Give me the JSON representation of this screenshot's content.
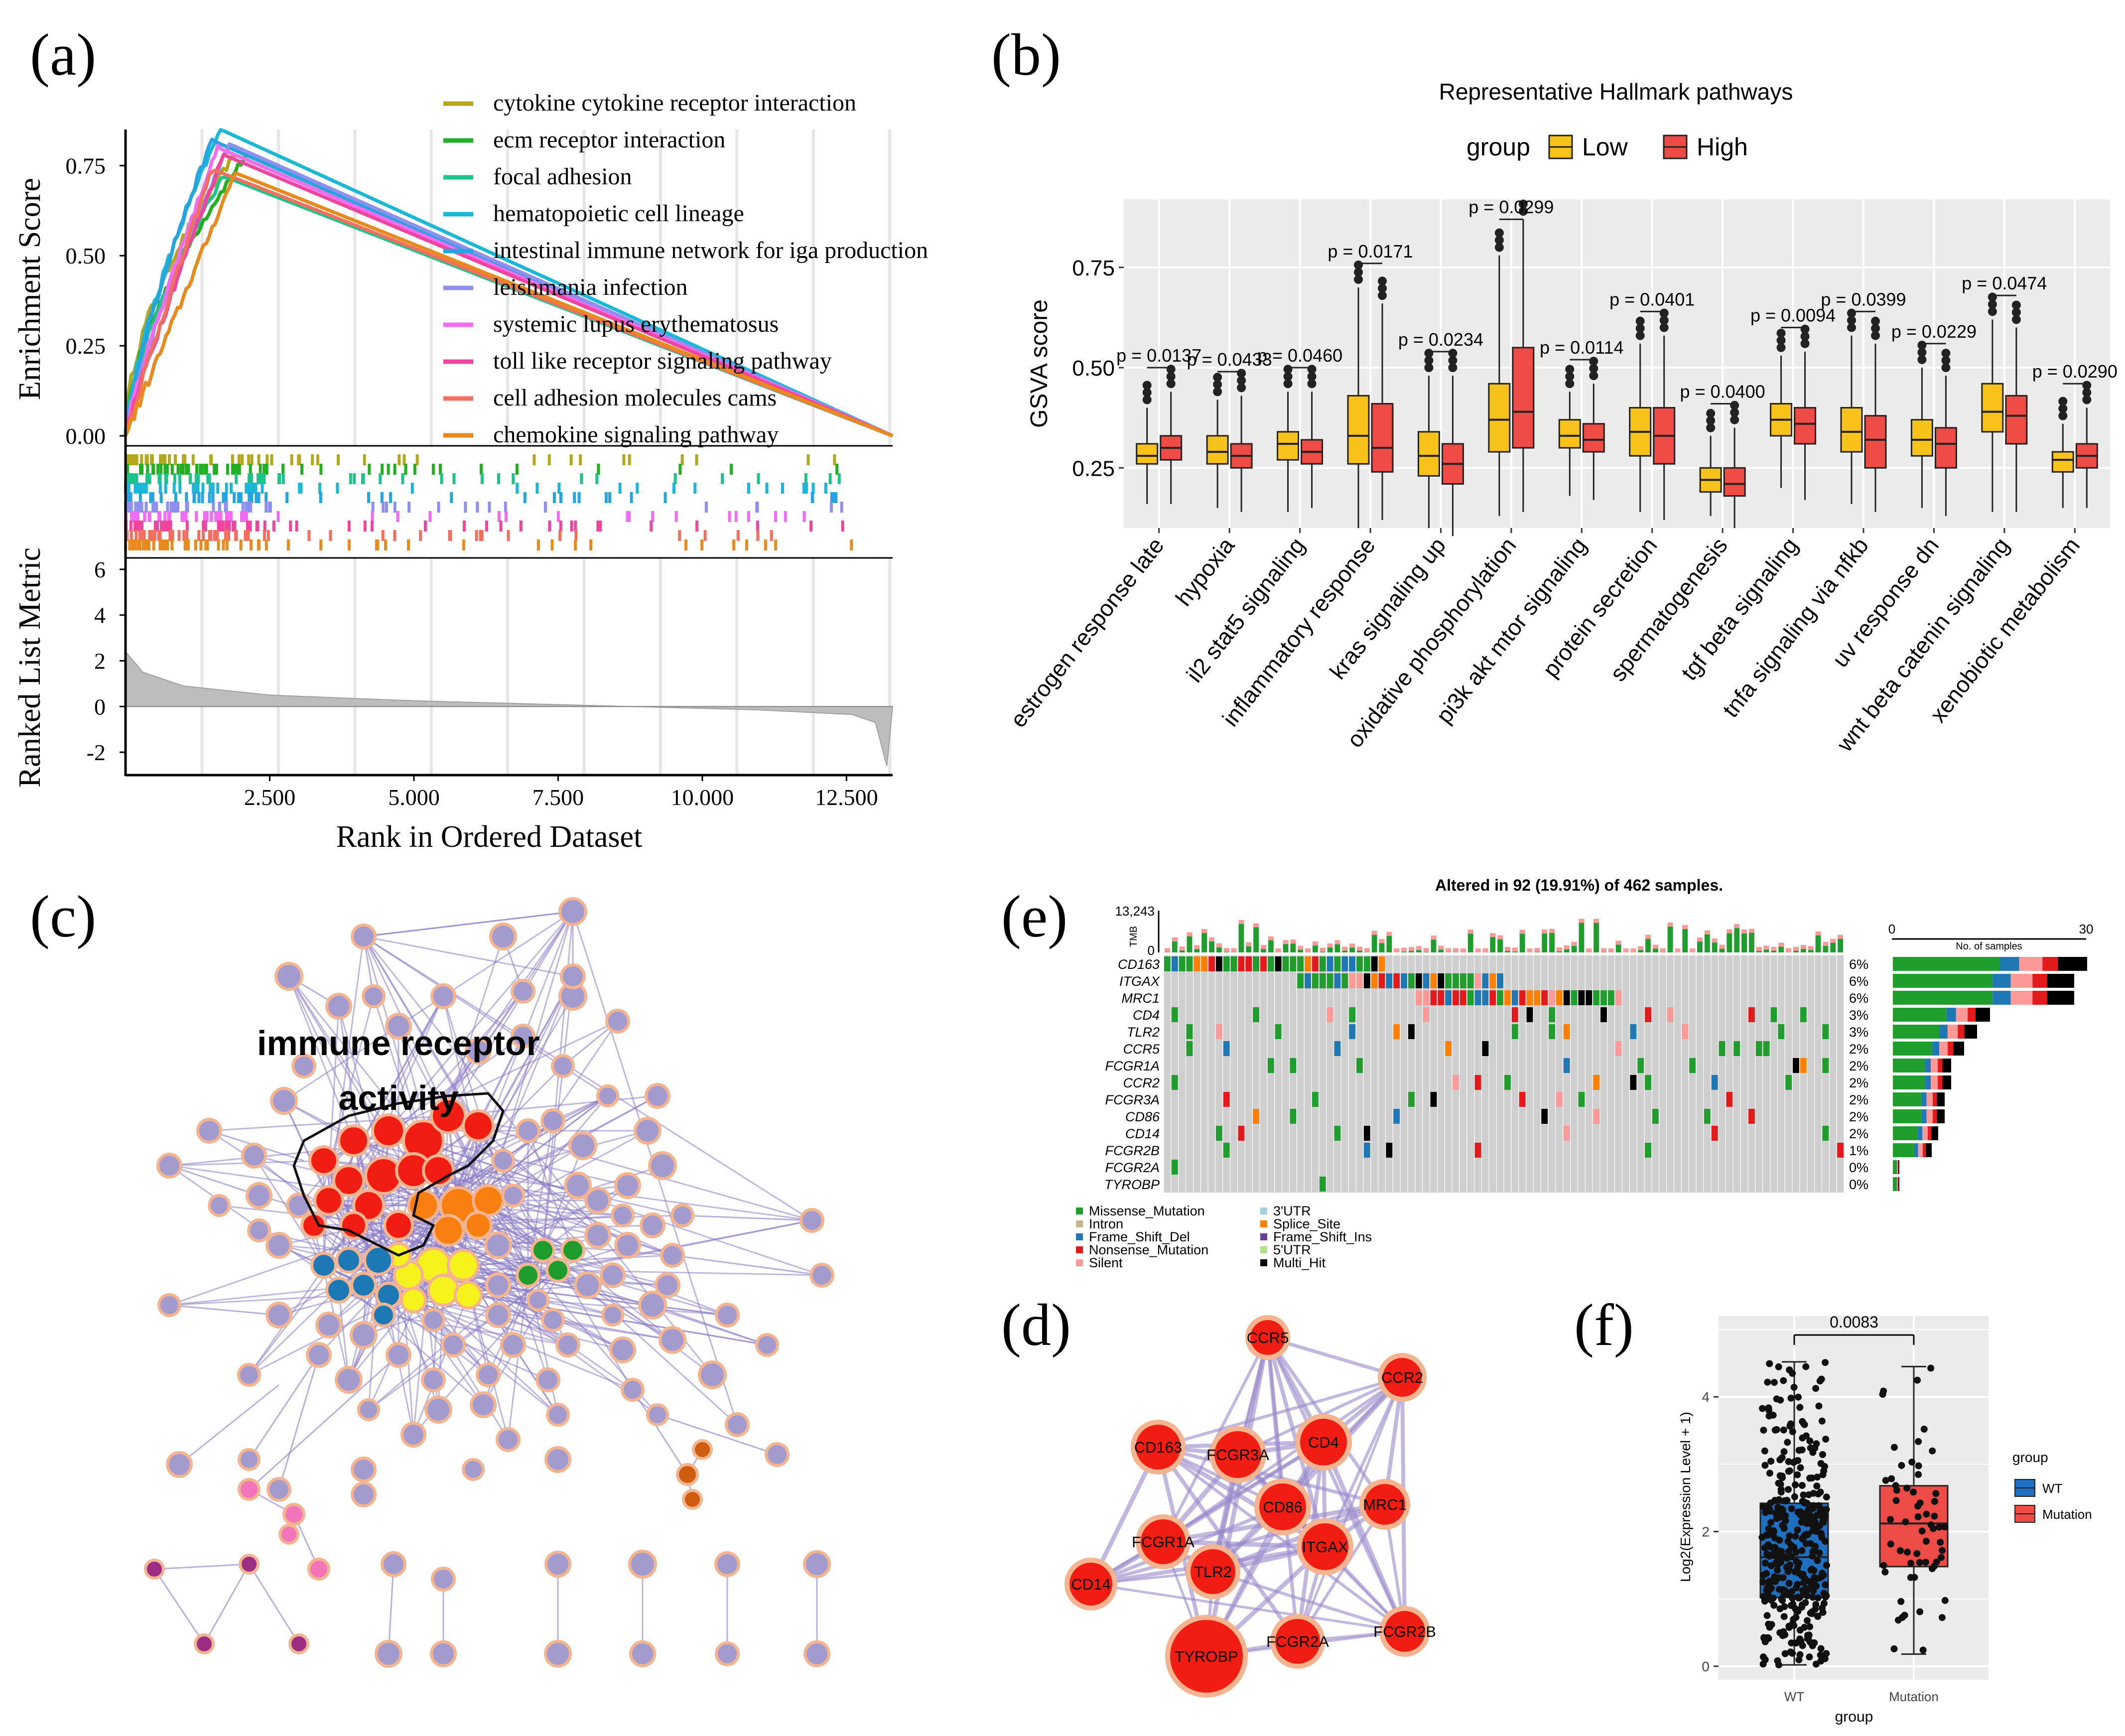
{
  "panels": {
    "a": "(a)",
    "b": "(b)",
    "c": "(c)",
    "d": "(d)",
    "e": "(e)",
    "f": "(f)"
  },
  "chart_data": [
    {
      "id": "gsea",
      "type": "line",
      "ylabel": "Enrichment Score",
      "ylabel2": "Ranked List Metric",
      "xlabel": "Rank in Ordered Dataset",
      "ylim": [
        0,
        0.85
      ],
      "yticks": [
        "0.75",
        "0.50",
        "0.25",
        "0.00"
      ],
      "ytick_values": [
        0.75,
        0.5,
        0.25,
        0.0
      ],
      "xticks": [
        "2.500",
        "5.000",
        "7.500",
        "10.000",
        "12.500"
      ],
      "xtick_values": [
        2500,
        5000,
        7500,
        10000,
        12500
      ],
      "xlim": [
        0,
        13300
      ],
      "metric_ylim": [
        -3,
        6.5
      ],
      "metric_ticks": [
        "6",
        "4",
        "2",
        "0",
        "-2"
      ],
      "metric_tick_values": [
        6,
        4,
        2,
        0,
        -2
      ],
      "metric_curve": [
        [
          0,
          2.4
        ],
        [
          300,
          1.5
        ],
        [
          1000,
          0.9
        ],
        [
          2500,
          0.5
        ],
        [
          5000,
          0.25
        ],
        [
          8000,
          0.05
        ],
        [
          11000,
          -0.15
        ],
        [
          12600,
          -0.35
        ],
        [
          13000,
          -0.7
        ],
        [
          13200,
          -2.6
        ]
      ],
      "series": [
        {
          "name": "cytokine cytokine receptor interaction",
          "color": "#b3a81c",
          "peak": [
            1900,
            0.78
          ]
        },
        {
          "name": "ecm receptor interaction",
          "color": "#22b022",
          "peak": [
            2100,
            0.78
          ]
        },
        {
          "name": "focal adhesion",
          "color": "#1dc38a",
          "peak": [
            1700,
            0.72
          ]
        },
        {
          "name": "hematopoietic cell lineage",
          "color": "#1ab8d6",
          "peak": [
            1650,
            0.85
          ]
        },
        {
          "name": "intestinal immune network for iga production",
          "color": "#24a5e0",
          "peak": [
            1500,
            0.82
          ]
        },
        {
          "name": "leishmania infection",
          "color": "#8f8ff0",
          "peak": [
            1800,
            0.81
          ]
        },
        {
          "name": "systemic lupus erythematosus",
          "color": "#f06cf0",
          "peak": [
            1600,
            0.8
          ]
        },
        {
          "name": "toll like receptor signaling pathway",
          "color": "#f0459e",
          "peak": [
            1700,
            0.78
          ]
        },
        {
          "name": "cell adhesion molecules cams",
          "color": "#f06f5e",
          "peak": [
            1500,
            0.74
          ]
        },
        {
          "name": "chemokine signaling pathway",
          "color": "#e88a1e",
          "peak": [
            1900,
            0.73
          ]
        }
      ]
    },
    {
      "id": "gsva",
      "type": "box",
      "title": "Representative Hallmark pathways",
      "legend_title": "group",
      "legend": [
        {
          "name": "Low",
          "color": "#f7c31b"
        },
        {
          "name": "High",
          "color": "#ee4b45"
        }
      ],
      "ylabel": "GSVA score",
      "ylim": [
        0.1,
        0.92
      ],
      "yticks": [
        "0.75",
        "0.50",
        "0.25"
      ],
      "ytick_values": [
        0.75,
        0.5,
        0.25
      ],
      "categories": [
        "estrogen response late",
        "hypoxia",
        "il2 stat5 signaling",
        "inflammatory response",
        "kras signaling up",
        "oxidative phosphorylation",
        "pi3k akt mtor signaling",
        "protein secretion",
        "spermatogenesis",
        "tgf beta signaling",
        "tnfa signaling via nfkb",
        "uv response dn",
        "wnt beta catenin signaling",
        "xenobiotic metabolism"
      ],
      "pvalues": [
        "p = 0.0137",
        "p = 0.0433",
        "p = 0.0460",
        "p = 0.0171",
        "p = 0.0234",
        "p = 0.0299",
        "p = 0.0114",
        "p = 0.0401",
        "p = 0.0400",
        "p = 0.0094",
        "p = 0.0399",
        "p = 0.0229",
        "p = 0.0474",
        "p = 0.0290"
      ],
      "low": [
        [
          0.16,
          0.26,
          0.28,
          0.31,
          0.4
        ],
        [
          0.15,
          0.26,
          0.29,
          0.33,
          0.42
        ],
        [
          0.14,
          0.27,
          0.31,
          0.34,
          0.44
        ],
        [
          0.1,
          0.26,
          0.33,
          0.43,
          0.7
        ],
        [
          0.1,
          0.23,
          0.28,
          0.34,
          0.48
        ],
        [
          0.13,
          0.29,
          0.37,
          0.46,
          0.78
        ],
        [
          0.18,
          0.3,
          0.33,
          0.37,
          0.44
        ],
        [
          0.14,
          0.28,
          0.34,
          0.4,
          0.56
        ],
        [
          0.13,
          0.19,
          0.22,
          0.25,
          0.33
        ],
        [
          0.2,
          0.33,
          0.37,
          0.41,
          0.53
        ],
        [
          0.16,
          0.29,
          0.34,
          0.4,
          0.58
        ],
        [
          0.15,
          0.28,
          0.32,
          0.37,
          0.5
        ],
        [
          0.14,
          0.34,
          0.39,
          0.46,
          0.62
        ],
        [
          0.15,
          0.24,
          0.27,
          0.29,
          0.36
        ]
      ],
      "high": [
        [
          0.16,
          0.27,
          0.3,
          0.33,
          0.44
        ],
        [
          0.14,
          0.25,
          0.28,
          0.31,
          0.43
        ],
        [
          0.15,
          0.26,
          0.29,
          0.32,
          0.44
        ],
        [
          0.12,
          0.24,
          0.3,
          0.41,
          0.66
        ],
        [
          0.08,
          0.21,
          0.26,
          0.31,
          0.48
        ],
        [
          0.14,
          0.3,
          0.39,
          0.55,
          0.87
        ],
        [
          0.17,
          0.29,
          0.32,
          0.36,
          0.46
        ],
        [
          0.12,
          0.26,
          0.33,
          0.4,
          0.58
        ],
        [
          0.1,
          0.18,
          0.21,
          0.25,
          0.35
        ],
        [
          0.17,
          0.31,
          0.36,
          0.4,
          0.54
        ],
        [
          0.14,
          0.25,
          0.32,
          0.38,
          0.56
        ],
        [
          0.13,
          0.25,
          0.31,
          0.35,
          0.48
        ],
        [
          0.14,
          0.31,
          0.38,
          0.43,
          0.6
        ],
        [
          0.15,
          0.25,
          0.28,
          0.31,
          0.4
        ]
      ]
    },
    {
      "id": "oncoplot",
      "type": "heatmap",
      "title": "Altered in 92 (19.91%) of 462 samples.",
      "tmb_label": "TMB",
      "tmb_max": "13,243",
      "tmb_min": "0",
      "right_axis_label": "No. of samples",
      "right_axis_ticks": [
        "0",
        "30"
      ],
      "right_axis_values": [
        0,
        30
      ],
      "genes": [
        "CD163",
        "ITGAX",
        "MRC1",
        "CD4",
        "TLR2",
        "CCR5",
        "FCGR1A",
        "CCR2",
        "FCGR3A",
        "CD86",
        "CD14",
        "FCGR2B",
        "FCGR2A",
        "TYROBP"
      ],
      "percent": [
        "6%",
        "6%",
        "6%",
        "3%",
        "3%",
        "2%",
        "2%",
        "2%",
        "2%",
        "2%",
        "2%",
        "1%",
        "0%",
        "0%"
      ],
      "counts": [
        30,
        28,
        28,
        15,
        13,
        11,
        9,
        9,
        8,
        8,
        7,
        6,
        1,
        1
      ],
      "legend": [
        {
          "name": "Missense_Mutation",
          "color": "#1f9e2e"
        },
        {
          "name": "Intron",
          "color": "#c4b78a"
        },
        {
          "name": "Frame_Shift_Del",
          "color": "#1f78b4"
        },
        {
          "name": "Nonsense_Mutation",
          "color": "#e31a1c"
        },
        {
          "name": "Silent",
          "color": "#fb9a99"
        },
        {
          "name": "3'UTR",
          "color": "#a6cee3"
        },
        {
          "name": "Splice_Site",
          "color": "#ff7f00"
        },
        {
          "name": "Frame_Shift_Ins",
          "color": "#6a3d9a"
        },
        {
          "name": "5'UTR",
          "color": "#b2df8a"
        },
        {
          "name": "Multi_Hit",
          "color": "#000000"
        }
      ]
    },
    {
      "id": "expression",
      "type": "box",
      "ylabel": "Log2(Expression Level + 1)",
      "xlabel": "group",
      "categories": [
        "WT",
        "Mutation"
      ],
      "pvalue": "0.0083",
      "ylim": [
        -0.2,
        5.2
      ],
      "yticks": [
        "0",
        "2",
        "4"
      ],
      "ytick_values": [
        0,
        2,
        4
      ],
      "legend_title": "group",
      "legend": [
        {
          "name": "WT",
          "color": "#1f6fc1"
        },
        {
          "name": "Mutation",
          "color": "#ec4c45"
        }
      ],
      "boxes": [
        [
          0.02,
          1.02,
          1.62,
          2.42,
          4.52
        ],
        [
          0.18,
          1.48,
          2.12,
          2.68,
          4.45
        ]
      ]
    }
  ],
  "network_c": {
    "label_line1": "immune receptor",
    "label_line2": "activity"
  },
  "network_d": {
    "genes": [
      "CCR5",
      "CCR2",
      "CD163",
      "FCGR3A",
      "CD4",
      "CD86",
      "MRC1",
      "FCGR1A",
      "ITGAX",
      "TLR2",
      "CD14",
      "FCGR2B",
      "TYROBP",
      "FCGR2A"
    ]
  }
}
